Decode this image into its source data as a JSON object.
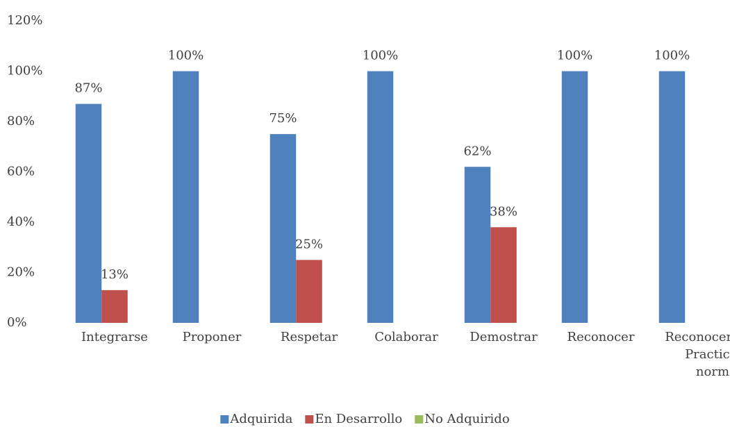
{
  "chart_data": {
    "type": "bar",
    "categories": [
      "Integrarse",
      "Proponer",
      "Respetar",
      "Colaborar",
      "Demostrar",
      "Reconocer",
      "Reconocer y Practicar normas"
    ],
    "series": [
      {
        "name": "Adquirida",
        "color": "#4f81bd",
        "values": [
          87,
          100,
          75,
          100,
          62,
          100,
          100
        ],
        "value_labels": [
          "87%",
          "100%",
          "75%",
          "100%",
          "62%",
          "100%",
          "100%"
        ]
      },
      {
        "name": "En Desarrollo",
        "color": "#c0504d",
        "values": [
          13,
          null,
          25,
          null,
          38,
          null,
          null
        ],
        "value_labels": [
          "13%",
          null,
          "25%",
          null,
          "38%",
          null,
          null
        ]
      },
      {
        "name": "No Adquirido",
        "color": "#9bbb59",
        "values": [
          null,
          null,
          null,
          null,
          null,
          null,
          null
        ]
      }
    ],
    "ylim": [
      0,
      120
    ],
    "yticks": [
      {
        "value": 0,
        "label": "0%"
      },
      {
        "value": 20,
        "label": "20%"
      },
      {
        "value": 40,
        "label": "40%"
      },
      {
        "value": 60,
        "label": "60%"
      },
      {
        "value": 80,
        "label": "80%"
      },
      {
        "value": 100,
        "label": "100%"
      },
      {
        "value": 120,
        "label": "120%"
      }
    ],
    "grid": false,
    "legend": "bottom"
  }
}
